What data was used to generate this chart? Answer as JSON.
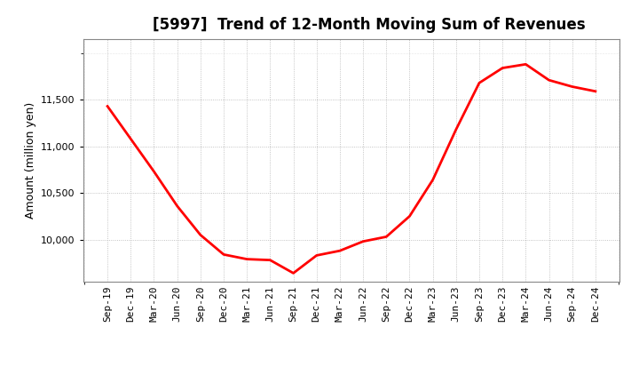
{
  "title": "[5997]  Trend of 12-Month Moving Sum of Revenues",
  "ylabel": "Amount (million yen)",
  "line_color": "#ff0000",
  "background_color": "#ffffff",
  "plot_bg_color": "#ffffff",
  "grid_color": "#aaaaaa",
  "x_labels": [
    "Sep-19",
    "Dec-19",
    "Mar-20",
    "Jun-20",
    "Sep-20",
    "Dec-20",
    "Mar-21",
    "Jun-21",
    "Sep-21",
    "Dec-21",
    "Mar-22",
    "Jun-22",
    "Sep-22",
    "Dec-22",
    "Mar-23",
    "Jun-23",
    "Sep-23",
    "Dec-23",
    "Mar-24",
    "Jun-24",
    "Sep-24",
    "Dec-24"
  ],
  "y_values": [
    11430,
    11080,
    10730,
    10360,
    10050,
    9840,
    9790,
    9780,
    9640,
    9830,
    9880,
    9980,
    10030,
    10250,
    10640,
    11180,
    11680,
    11840,
    11880,
    11710,
    11640,
    11590
  ],
  "yticks": [
    10000,
    10500,
    11000,
    11500
  ],
  "ylim": [
    9550,
    12150
  ],
  "title_fontsize": 12,
  "axis_fontsize": 9,
  "tick_fontsize": 8
}
